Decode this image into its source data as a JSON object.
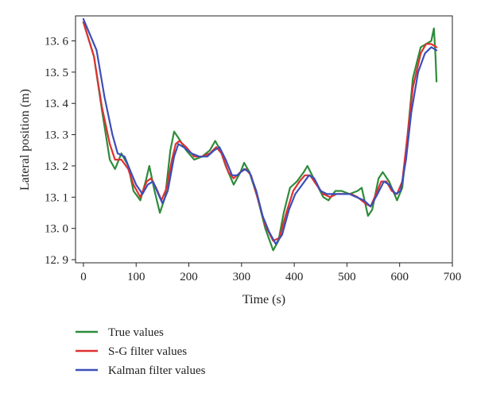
{
  "chart_data": {
    "type": "line",
    "xlabel": "Time (s)",
    "ylabel": "Lateral position (m)",
    "xlim": [
      -15,
      700
    ],
    "ylim": [
      12.89,
      13.68
    ],
    "xticks": [
      0,
      100,
      200,
      300,
      400,
      500,
      600,
      700
    ],
    "yticks": [
      12.9,
      13.0,
      13.1,
      13.2,
      13.3,
      13.4,
      13.5,
      13.6
    ],
    "ytick_labels": [
      "12. 9",
      "13. 0",
      "13. 1",
      "13. 2",
      "13. 3",
      "13. 4",
      "13. 5",
      "13. 6"
    ],
    "grid": false,
    "legend_position": "below-left",
    "series": [
      {
        "name": "True values",
        "color": "#2e8b3a",
        "points": [
          [
            0,
            13.66
          ],
          [
            20,
            13.55
          ],
          [
            35,
            13.38
          ],
          [
            50,
            13.22
          ],
          [
            60,
            13.19
          ],
          [
            72,
            13.24
          ],
          [
            85,
            13.2
          ],
          [
            95,
            13.12
          ],
          [
            108,
            13.09
          ],
          [
            118,
            13.15
          ],
          [
            125,
            13.2
          ],
          [
            135,
            13.12
          ],
          [
            145,
            13.05
          ],
          [
            155,
            13.1
          ],
          [
            165,
            13.25
          ],
          [
            172,
            13.31
          ],
          [
            180,
            13.29
          ],
          [
            195,
            13.25
          ],
          [
            210,
            13.22
          ],
          [
            225,
            13.23
          ],
          [
            240,
            13.25
          ],
          [
            250,
            13.28
          ],
          [
            260,
            13.25
          ],
          [
            270,
            13.2
          ],
          [
            285,
            13.14
          ],
          [
            298,
            13.18
          ],
          [
            305,
            13.21
          ],
          [
            315,
            13.18
          ],
          [
            330,
            13.1
          ],
          [
            345,
            13.0
          ],
          [
            360,
            12.93
          ],
          [
            370,
            12.96
          ],
          [
            380,
            13.05
          ],
          [
            392,
            13.13
          ],
          [
            405,
            13.15
          ],
          [
            418,
            13.18
          ],
          [
            425,
            13.2
          ],
          [
            440,
            13.15
          ],
          [
            455,
            13.1
          ],
          [
            465,
            13.09
          ],
          [
            478,
            13.12
          ],
          [
            490,
            13.12
          ],
          [
            505,
            13.11
          ],
          [
            520,
            13.12
          ],
          [
            528,
            13.13
          ],
          [
            540,
            13.04
          ],
          [
            548,
            13.06
          ],
          [
            560,
            13.16
          ],
          [
            568,
            13.18
          ],
          [
            580,
            13.15
          ],
          [
            595,
            13.09
          ],
          [
            605,
            13.13
          ],
          [
            615,
            13.3
          ],
          [
            625,
            13.48
          ],
          [
            640,
            13.58
          ],
          [
            650,
            13.59
          ],
          [
            660,
            13.6
          ],
          [
            665,
            13.64
          ],
          [
            668,
            13.55
          ],
          [
            670,
            13.47
          ]
        ]
      },
      {
        "name": "S-G filter values",
        "color": "#e03030",
        "points": [
          [
            0,
            13.66
          ],
          [
            20,
            13.55
          ],
          [
            35,
            13.39
          ],
          [
            50,
            13.27
          ],
          [
            60,
            13.22
          ],
          [
            72,
            13.22
          ],
          [
            85,
            13.19
          ],
          [
            95,
            13.14
          ],
          [
            108,
            13.1
          ],
          [
            120,
            13.15
          ],
          [
            128,
            13.16
          ],
          [
            138,
            13.13
          ],
          [
            148,
            13.09
          ],
          [
            158,
            13.13
          ],
          [
            168,
            13.22
          ],
          [
            175,
            13.27
          ],
          [
            182,
            13.28
          ],
          [
            195,
            13.26
          ],
          [
            210,
            13.23
          ],
          [
            225,
            13.23
          ],
          [
            240,
            13.24
          ],
          [
            252,
            13.26
          ],
          [
            262,
            13.24
          ],
          [
            275,
            13.18
          ],
          [
            285,
            13.16
          ],
          [
            298,
            13.18
          ],
          [
            308,
            13.19
          ],
          [
            318,
            13.17
          ],
          [
            330,
            13.1
          ],
          [
            345,
            13.01
          ],
          [
            360,
            12.96
          ],
          [
            372,
            12.97
          ],
          [
            385,
            13.05
          ],
          [
            398,
            13.12
          ],
          [
            410,
            13.15
          ],
          [
            420,
            13.17
          ],
          [
            430,
            13.17
          ],
          [
            442,
            13.14
          ],
          [
            455,
            13.11
          ],
          [
            468,
            13.1
          ],
          [
            480,
            13.11
          ],
          [
            495,
            13.11
          ],
          [
            508,
            13.11
          ],
          [
            520,
            13.1
          ],
          [
            535,
            13.08
          ],
          [
            545,
            13.07
          ],
          [
            555,
            13.11
          ],
          [
            565,
            13.15
          ],
          [
            575,
            13.15
          ],
          [
            585,
            13.12
          ],
          [
            595,
            13.11
          ],
          [
            605,
            13.15
          ],
          [
            615,
            13.3
          ],
          [
            625,
            13.45
          ],
          [
            640,
            13.56
          ],
          [
            650,
            13.59
          ],
          [
            660,
            13.59
          ],
          [
            670,
            13.58
          ]
        ]
      },
      {
        "name": "Kalman filter values",
        "color": "#3a4fb8",
        "points": [
          [
            0,
            13.67
          ],
          [
            25,
            13.57
          ],
          [
            40,
            13.42
          ],
          [
            55,
            13.3
          ],
          [
            65,
            13.24
          ],
          [
            78,
            13.23
          ],
          [
            90,
            13.18
          ],
          [
            100,
            13.14
          ],
          [
            112,
            13.11
          ],
          [
            122,
            13.14
          ],
          [
            132,
            13.15
          ],
          [
            142,
            13.11
          ],
          [
            150,
            13.08
          ],
          [
            160,
            13.12
          ],
          [
            172,
            13.23
          ],
          [
            180,
            13.27
          ],
          [
            190,
            13.26
          ],
          [
            205,
            13.24
          ],
          [
            220,
            13.23
          ],
          [
            235,
            13.23
          ],
          [
            248,
            13.25
          ],
          [
            258,
            13.26
          ],
          [
            270,
            13.22
          ],
          [
            282,
            13.17
          ],
          [
            292,
            13.17
          ],
          [
            305,
            13.19
          ],
          [
            315,
            13.18
          ],
          [
            328,
            13.12
          ],
          [
            340,
            13.04
          ],
          [
            352,
            12.99
          ],
          [
            365,
            12.95
          ],
          [
            377,
            12.98
          ],
          [
            390,
            13.06
          ],
          [
            402,
            13.11
          ],
          [
            415,
            13.14
          ],
          [
            428,
            13.17
          ],
          [
            438,
            13.16
          ],
          [
            450,
            13.12
          ],
          [
            462,
            13.11
          ],
          [
            475,
            13.11
          ],
          [
            490,
            13.11
          ],
          [
            505,
            13.11
          ],
          [
            518,
            13.1
          ],
          [
            532,
            13.09
          ],
          [
            545,
            13.07
          ],
          [
            558,
            13.11
          ],
          [
            570,
            13.15
          ],
          [
            580,
            13.14
          ],
          [
            592,
            13.11
          ],
          [
            602,
            13.12
          ],
          [
            612,
            13.22
          ],
          [
            622,
            13.37
          ],
          [
            635,
            13.5
          ],
          [
            648,
            13.56
          ],
          [
            660,
            13.58
          ],
          [
            670,
            13.57
          ]
        ]
      }
    ]
  }
}
